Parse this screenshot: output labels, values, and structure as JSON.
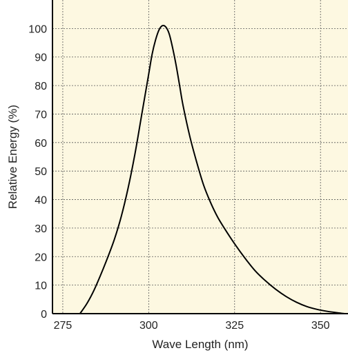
{
  "colors": {
    "plot_background": "#fdf8e1",
    "curve": "#000000",
    "grid": "#555555",
    "axis": "#000000"
  },
  "chart_data": {
    "type": "line",
    "xlabel": "Wave Length (nm)",
    "ylabel": "Relative Energy (%)",
    "xlim": [
      272,
      358
    ],
    "ylim": [
      0,
      110
    ],
    "x_ticks": [
      275,
      300,
      325,
      350
    ],
    "y_ticks": [
      0,
      10,
      20,
      30,
      40,
      50,
      60,
      70,
      80,
      90,
      100
    ],
    "grid": true,
    "series": [
      {
        "x": [
          280,
          282,
          284,
          286,
          288,
          290,
          292,
          294,
          296,
          298,
          300,
          301,
          302,
          303,
          304,
          305,
          306,
          307,
          308,
          309,
          310,
          312,
          314,
          316,
          318,
          320,
          322,
          325,
          328,
          331,
          334,
          337,
          340,
          343,
          346,
          349,
          352,
          355,
          357
        ],
        "y": [
          0,
          3.5,
          8,
          13.5,
          19.5,
          26,
          34,
          44,
          56,
          70,
          84,
          91,
          96,
          99.5,
          101,
          100.5,
          98,
          93,
          87,
          80,
          73,
          62,
          53,
          45,
          39,
          34,
          30,
          24.5,
          19.5,
          15,
          11.5,
          8.5,
          6,
          4,
          2.5,
          1.5,
          0.8,
          0.3,
          0
        ]
      }
    ]
  }
}
